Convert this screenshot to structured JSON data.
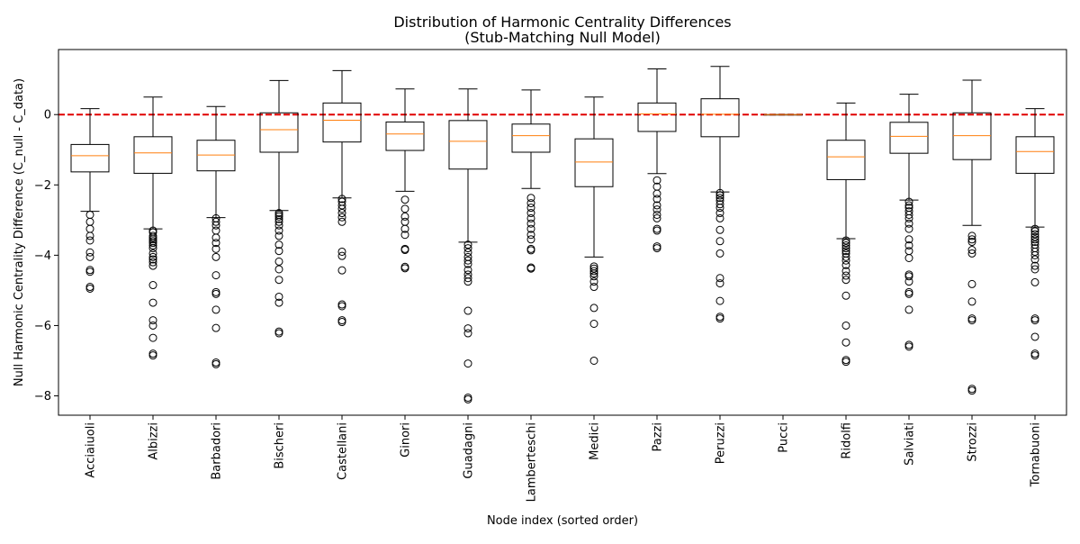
{
  "chart_data": {
    "type": "box",
    "title": "Distribution of Harmonic Centrality Differences",
    "subtitle": "(Stub-Matching Null Model)",
    "xlabel": "Node index (sorted order)",
    "ylabel": "Null Harmonic Centrality Difference (C_null - C_data)",
    "ylim": [
      -8.55,
      1.85
    ],
    "yticks": [
      0,
      -2,
      -4,
      -6,
      -8
    ],
    "grid": false,
    "reference_line": {
      "y": 0,
      "style": "dashed",
      "color": "#e00000"
    },
    "colors": {
      "box": "#000000",
      "median": "#ff7f0e",
      "reference": "#e00000"
    },
    "categories": [
      "Acciaiuoli",
      "Albizzi",
      "Barbadori",
      "Bischeri",
      "Castellani",
      "Ginori",
      "Guadagni",
      "Lamberteschi",
      "Medici",
      "Pazzi",
      "Peruzzi",
      "Pucci",
      "Ridolfi",
      "Salviati",
      "Strozzi",
      "Tornabuoni"
    ],
    "boxes": [
      {
        "name": "Acciaiuoli",
        "whislo": -2.75,
        "q1": -1.63,
        "med": -1.17,
        "q3": -0.85,
        "whishi": 0.17,
        "fliers": [
          -2.85,
          -3.05,
          -3.25,
          -3.45,
          -3.58,
          -3.92,
          -4.05,
          -4.42,
          -4.47,
          -4.9,
          -4.95
        ]
      },
      {
        "name": "Albizzi",
        "whislo": -3.25,
        "q1": -1.67,
        "med": -1.09,
        "q3": -0.63,
        "whishi": 0.5,
        "fliers": [
          -3.3,
          -3.35,
          -3.45,
          -3.5,
          -3.55,
          -3.6,
          -3.65,
          -3.72,
          -3.8,
          -3.95,
          -4.05,
          -4.12,
          -4.2,
          -4.3,
          -4.85,
          -5.35,
          -5.85,
          -6.0,
          -6.35,
          -6.8,
          -6.85
        ]
      },
      {
        "name": "Barbadori",
        "whislo": -2.93,
        "q1": -1.6,
        "med": -1.15,
        "q3": -0.73,
        "whishi": 0.23,
        "fliers": [
          -2.95,
          -3.05,
          -3.15,
          -3.3,
          -3.5,
          -3.65,
          -3.82,
          -4.05,
          -4.57,
          -5.05,
          -5.1,
          -5.55,
          -6.07,
          -7.05,
          -7.1
        ]
      },
      {
        "name": "Bischeri",
        "whislo": -2.73,
        "q1": -1.07,
        "med": -0.43,
        "q3": 0.05,
        "whishi": 0.97,
        "fliers": [
          -2.8,
          -2.85,
          -2.9,
          -2.97,
          -3.05,
          -3.15,
          -3.3,
          -3.45,
          -3.7,
          -3.88,
          -4.18,
          -4.4,
          -4.7,
          -5.18,
          -5.35,
          -6.17,
          -6.22
        ]
      },
      {
        "name": "Castellani",
        "whislo": -2.37,
        "q1": -0.78,
        "med": -0.16,
        "q3": 0.33,
        "whishi": 1.25,
        "fliers": [
          -2.4,
          -2.48,
          -2.58,
          -2.68,
          -2.8,
          -2.92,
          -3.05,
          -3.9,
          -4.02,
          -4.43,
          -5.4,
          -5.45,
          -5.85,
          -5.9
        ]
      },
      {
        "name": "Ginori",
        "whislo": -2.18,
        "q1": -1.02,
        "med": -0.55,
        "q3": -0.21,
        "whishi": 0.73,
        "fliers": [
          -2.42,
          -2.68,
          -2.9,
          -3.05,
          -3.25,
          -3.42,
          -3.82,
          -3.85,
          -4.33,
          -4.37
        ]
      },
      {
        "name": "Guadagni",
        "whislo": -3.63,
        "q1": -1.55,
        "med": -0.76,
        "q3": -0.17,
        "whishi": 0.73,
        "fliers": [
          -3.7,
          -3.8,
          -3.92,
          -4.05,
          -4.15,
          -4.25,
          -4.42,
          -4.55,
          -4.65,
          -4.75,
          -5.58,
          -6.08,
          -6.22,
          -7.08,
          -8.05,
          -8.1
        ]
      },
      {
        "name": "Lamberteschi",
        "whislo": -2.1,
        "q1": -1.07,
        "med": -0.6,
        "q3": -0.27,
        "whishi": 0.7,
        "fliers": [
          -2.37,
          -2.52,
          -2.65,
          -2.8,
          -2.95,
          -3.1,
          -3.25,
          -3.42,
          -3.55,
          -3.82,
          -3.86,
          -4.35,
          -4.38
        ]
      },
      {
        "name": "Medici",
        "whislo": -4.05,
        "q1": -2.05,
        "med": -1.35,
        "q3": -0.69,
        "whishi": 0.5,
        "fliers": [
          -4.32,
          -4.38,
          -4.45,
          -4.52,
          -4.6,
          -4.75,
          -4.9,
          -5.5,
          -5.95,
          -7.0
        ]
      },
      {
        "name": "Pazzi",
        "whislo": -1.68,
        "q1": -0.48,
        "med": 0.02,
        "q3": 0.33,
        "whishi": 1.3,
        "fliers": [
          -1.87,
          -2.05,
          -2.25,
          -2.4,
          -2.58,
          -2.7,
          -2.85,
          -2.95,
          -3.25,
          -3.3,
          -3.75,
          -3.8
        ]
      },
      {
        "name": "Peruzzi",
        "whislo": -2.2,
        "q1": -0.63,
        "med": 0.01,
        "q3": 0.45,
        "whishi": 1.37,
        "fliers": [
          -2.23,
          -2.3,
          -2.37,
          -2.45,
          -2.55,
          -2.65,
          -2.8,
          -2.95,
          -3.28,
          -3.6,
          -3.95,
          -4.65,
          -4.8,
          -5.3,
          -5.75,
          -5.8
        ]
      },
      {
        "name": "Pucci",
        "whislo": 0.0,
        "q1": 0.0,
        "med": 0.0,
        "q3": 0.0,
        "whishi": 0.0,
        "fliers": []
      },
      {
        "name": "Ridolfi",
        "whislo": -3.53,
        "q1": -1.85,
        "med": -1.2,
        "q3": -0.73,
        "whishi": 0.33,
        "fliers": [
          -3.58,
          -3.65,
          -3.72,
          -3.8,
          -3.88,
          -3.95,
          -4.05,
          -4.15,
          -4.28,
          -4.45,
          -4.58,
          -4.7,
          -5.15,
          -6.0,
          -6.48,
          -6.98,
          -7.03
        ]
      },
      {
        "name": "Salviati",
        "whislo": -2.43,
        "q1": -1.1,
        "med": -0.62,
        "q3": -0.22,
        "whishi": 0.58,
        "fliers": [
          -2.48,
          -2.58,
          -2.65,
          -2.75,
          -2.85,
          -2.95,
          -3.1,
          -3.25,
          -3.55,
          -3.72,
          -3.88,
          -4.08,
          -4.55,
          -4.6,
          -4.75,
          -5.05,
          -5.1,
          -5.55,
          -6.55,
          -6.6
        ]
      },
      {
        "name": "Strozzi",
        "whislo": -3.15,
        "q1": -1.28,
        "med": -0.6,
        "q3": 0.05,
        "whishi": 0.98,
        "fliers": [
          -3.45,
          -3.55,
          -3.62,
          -3.85,
          -3.95,
          -4.82,
          -5.32,
          -5.8,
          -5.85,
          -7.8,
          -7.85
        ]
      },
      {
        "name": "Tornabuoni",
        "whislo": -3.2,
        "q1": -1.67,
        "med": -1.05,
        "q3": -0.63,
        "whishi": 0.17,
        "fliers": [
          -3.25,
          -3.32,
          -3.4,
          -3.48,
          -3.55,
          -3.62,
          -3.7,
          -3.8,
          -3.9,
          -4.0,
          -4.12,
          -4.3,
          -4.4,
          -4.77,
          -5.8,
          -5.85,
          -6.32,
          -6.8,
          -6.85
        ]
      }
    ]
  }
}
